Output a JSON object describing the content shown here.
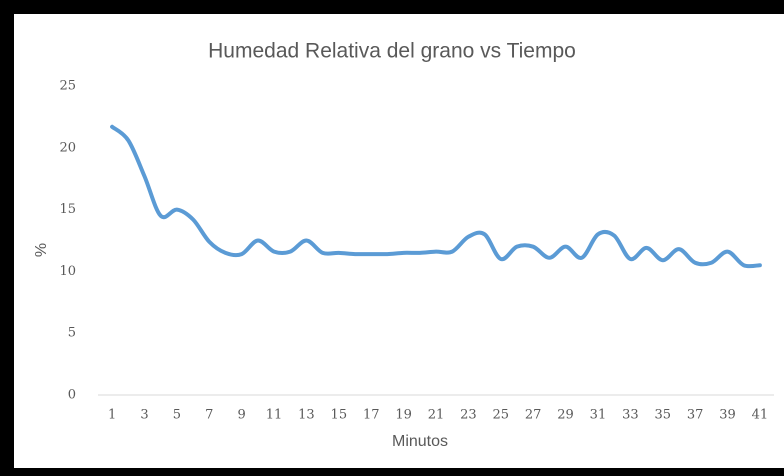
{
  "chart_data": {
    "type": "line",
    "title": "Humedad Relativa del grano vs Tiempo",
    "x_label": "Minutos",
    "y_label": "%",
    "categories": [
      1,
      null,
      3,
      null,
      5,
      null,
      7,
      null,
      9,
      null,
      11,
      null,
      13,
      null,
      15,
      null,
      17,
      null,
      19,
      null,
      21,
      null,
      23,
      null,
      25,
      null,
      27,
      null,
      29,
      null,
      31,
      null,
      33,
      null,
      35,
      null,
      37,
      null,
      39,
      null,
      41
    ],
    "series": [
      {
        "name": "Humedad",
        "color": "#5b9bd5",
        "values": [
          21.7,
          20.6,
          17.7,
          14.5,
          15.0,
          14.2,
          12.4,
          11.5,
          11.4,
          12.5,
          11.6,
          11.6,
          12.5,
          11.5,
          11.5,
          11.4,
          11.4,
          11.4,
          11.5,
          11.5,
          11.6,
          11.6,
          12.8,
          13.0,
          11.0,
          12.0,
          12.0,
          11.1,
          12.0,
          11.1,
          13.0,
          12.9,
          11.0,
          11.9,
          10.9,
          11.8,
          10.7,
          10.7,
          11.6,
          10.5,
          10.5
        ]
      }
    ],
    "ylim": [
      0,
      25
    ],
    "yticks": [
      0,
      5,
      10,
      15,
      20,
      25
    ],
    "grid": false,
    "smooth": true
  }
}
